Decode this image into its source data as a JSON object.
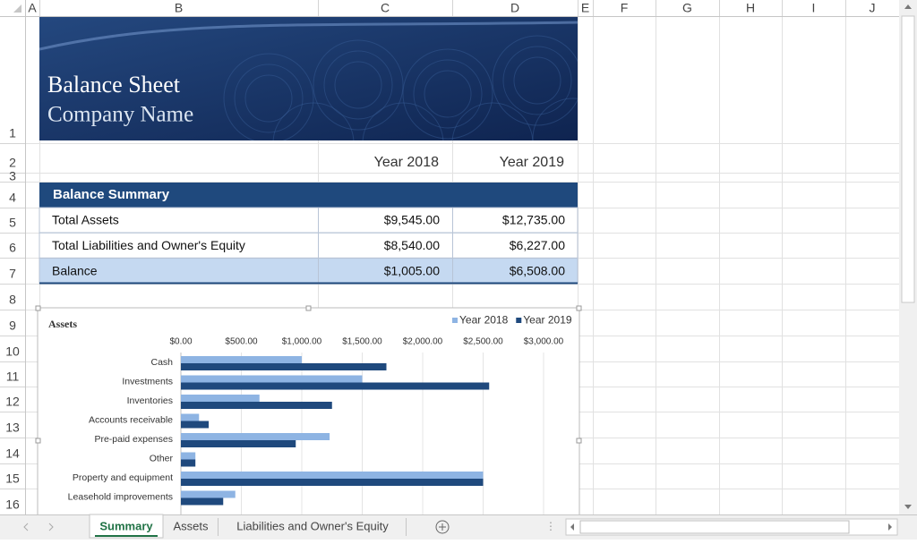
{
  "columns": [
    "A",
    "B",
    "C",
    "D",
    "E",
    "F",
    "G",
    "H",
    "I",
    "J"
  ],
  "row_numbers": [
    "1",
    "2",
    "3",
    "4",
    "5",
    "6",
    "7",
    "8",
    "9",
    "10",
    "11",
    "12",
    "13",
    "14",
    "15",
    "16"
  ],
  "banner": {
    "title": "Balance Sheet",
    "subtitle": "Company Name"
  },
  "year_headers": [
    "Year 2018",
    "Year 2019"
  ],
  "summary": {
    "title": "Balance Summary",
    "rows": [
      [
        "Total Assets",
        "$9,545.00",
        "$12,735.00"
      ],
      [
        "Total Liabilities and Owner's Equity",
        "$8,540.00",
        "$6,227.00"
      ],
      [
        "Balance",
        "$1,005.00",
        "$6,508.00"
      ]
    ]
  },
  "chart_data": {
    "type": "bar",
    "orientation": "horizontal",
    "title": "Assets",
    "categories": [
      "Cash",
      "Investments",
      "Inventories",
      "Accounts receivable",
      "Pre-paid expenses",
      "Other",
      "Property and equipment",
      "Leasehold improvements"
    ],
    "series": [
      {
        "name": "Year 2018",
        "color": "#8eb4e3",
        "values": [
          1000,
          1500,
          650,
          150,
          1230,
          120,
          2500,
          450
        ]
      },
      {
        "name": "Year 2019",
        "color": "#1f497d",
        "values": [
          1700,
          2550,
          1250,
          230,
          950,
          120,
          2500,
          350
        ]
      }
    ],
    "xlim": [
      0,
      3000
    ],
    "xticks": [
      {
        "value": 0,
        "label": "$0.00"
      },
      {
        "value": 500,
        "label": "$500.00"
      },
      {
        "value": 1000,
        "label": "$1,000.00"
      },
      {
        "value": 1500,
        "label": "$1,500.00"
      },
      {
        "value": 2000,
        "label": "$2,000.00"
      },
      {
        "value": 2500,
        "label": "$2,500.00"
      },
      {
        "value": 3000,
        "label": "$3,000.00"
      }
    ],
    "grid": true,
    "legend": "top-right"
  },
  "sheet_tabs": [
    "Summary",
    "Assets",
    "Liabilities and Owner's Equity"
  ]
}
